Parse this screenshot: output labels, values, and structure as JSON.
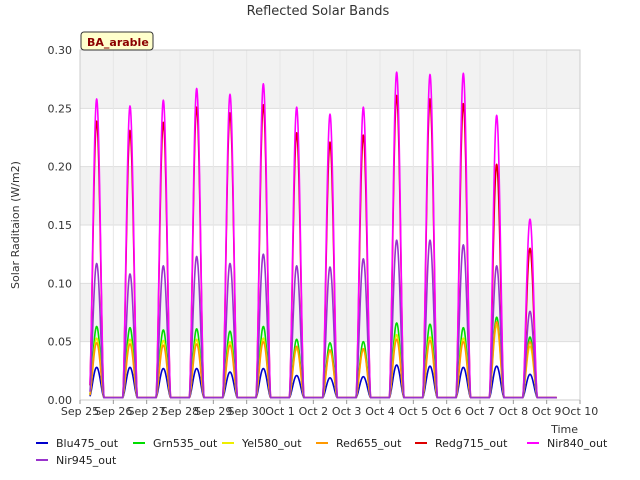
{
  "chart_data": {
    "type": "line",
    "title": "Reflected Solar Bands",
    "xlabel": "Time",
    "ylabel": "Solar Raditaion (W/m2)",
    "station_tag": "BA_arable",
    "ylim": [
      0,
      0.3
    ],
    "y_ticks": [
      "0.00",
      "0.05",
      "0.10",
      "0.15",
      "0.20",
      "0.25",
      "0.30"
    ],
    "x_ticks": [
      "Sep 25",
      "Sep 26",
      "Sep 27",
      "Sep 28",
      "Sep 29",
      "Sep 30",
      "Oct 1",
      "Oct 2",
      "Oct 3",
      "Oct 4",
      "Oct 5",
      "Oct 6",
      "Oct 7",
      "Oct 8",
      "Oct 9",
      "Oct 10"
    ],
    "day_peaks_x": [
      "Sep 25 12:00",
      "Sep 26 12:00",
      "Sep 27 12:00",
      "Sep 28 12:00",
      "Sep 29 12:00",
      "Sep 30 12:00",
      "Oct 1 12:00",
      "Oct 2 12:00",
      "Oct 3 12:00",
      "Oct 4 12:00",
      "Oct 5 12:00",
      "Oct 6 12:00",
      "Oct 7 12:00",
      "Oct 8 12:00",
      "Oct 9 12:00"
    ],
    "grid": true,
    "legend_placement": "bottom",
    "series": [
      {
        "name": "Blu475_out",
        "color": "#0000cc",
        "peaks": [
          0.026,
          0.026,
          0.025,
          0.025,
          0.022,
          0.025,
          0.019,
          0.017,
          0.018,
          0.028,
          0.027,
          0.026,
          0.027,
          0.02,
          0.0
        ]
      },
      {
        "name": "Grn535_out",
        "color": "#00dd00",
        "peaks": [
          0.061,
          0.06,
          0.058,
          0.059,
          0.057,
          0.061,
          0.05,
          0.047,
          0.048,
          0.064,
          0.063,
          0.06,
          0.069,
          0.052,
          0.0
        ]
      },
      {
        "name": "Yel580_out",
        "color": "#eeee00",
        "peaks": [
          0.051,
          0.05,
          0.049,
          0.05,
          0.048,
          0.051,
          0.042,
          0.04,
          0.041,
          0.054,
          0.052,
          0.051,
          0.062,
          0.044,
          0.0
        ]
      },
      {
        "name": "Red655_out",
        "color": "#ff9900",
        "peaks": [
          0.047,
          0.046,
          0.045,
          0.046,
          0.045,
          0.048,
          0.044,
          0.041,
          0.042,
          0.05,
          0.049,
          0.048,
          0.065,
          0.048,
          0.0
        ]
      },
      {
        "name": "Redg715_out",
        "color": "#dd0000",
        "peaks": [
          0.237,
          0.229,
          0.236,
          0.249,
          0.244,
          0.251,
          0.227,
          0.219,
          0.225,
          0.259,
          0.256,
          0.252,
          0.2,
          0.128,
          0.0
        ]
      },
      {
        "name": "Nir840_out",
        "color": "#ff00ff",
        "peaks": [
          0.256,
          0.25,
          0.255,
          0.265,
          0.26,
          0.269,
          0.249,
          0.243,
          0.249,
          0.279,
          0.277,
          0.278,
          0.242,
          0.153,
          0.0
        ]
      },
      {
        "name": "Nir945_out",
        "color": "#9933cc",
        "peaks": [
          0.115,
          0.106,
          0.113,
          0.121,
          0.115,
          0.123,
          0.113,
          0.112,
          0.119,
          0.135,
          0.135,
          0.131,
          0.113,
          0.074,
          0.0
        ]
      }
    ]
  }
}
